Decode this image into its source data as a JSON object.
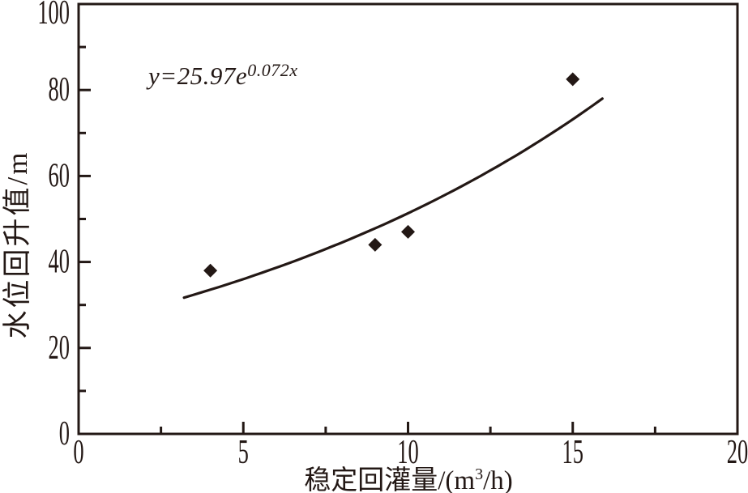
{
  "chart_data": {
    "type": "scatter",
    "title": "",
    "xlabel": {
      "pre": "稳定回灌量/(m",
      "sup": "3",
      "post": "/h)"
    },
    "ylabel": "水位回升值/m",
    "xlim": [
      0,
      20
    ],
    "ylim": [
      0,
      100
    ],
    "x_major_ticks": [
      0,
      5,
      10,
      15,
      20
    ],
    "x_minor_ticks": [
      2.5,
      7.5,
      12.5,
      17.5
    ],
    "y_major_ticks": [
      0,
      20,
      40,
      60,
      80,
      100
    ],
    "y_minor_ticks": [
      10,
      30,
      50,
      70,
      90
    ],
    "x_tick_labels": [
      "0",
      "5",
      "10",
      "15",
      "20"
    ],
    "y_tick_labels": [
      "0",
      "20",
      "40",
      "60",
      "80",
      "100"
    ],
    "points": [
      [
        4,
        38
      ],
      [
        9,
        44
      ],
      [
        10,
        47
      ],
      [
        15,
        82.5
      ]
    ],
    "marker": "filled-diamond",
    "curve": {
      "type": "exponential",
      "x_start": 3.2,
      "y_start": 31.7,
      "x_end": 15.9,
      "y_end": 78
    },
    "equation": {
      "base": "y=25.97e",
      "exponent": "0.072x"
    },
    "grid": false,
    "legend": "none",
    "frame": "box",
    "ink_color": "#231815",
    "background": "#ffffff"
  }
}
